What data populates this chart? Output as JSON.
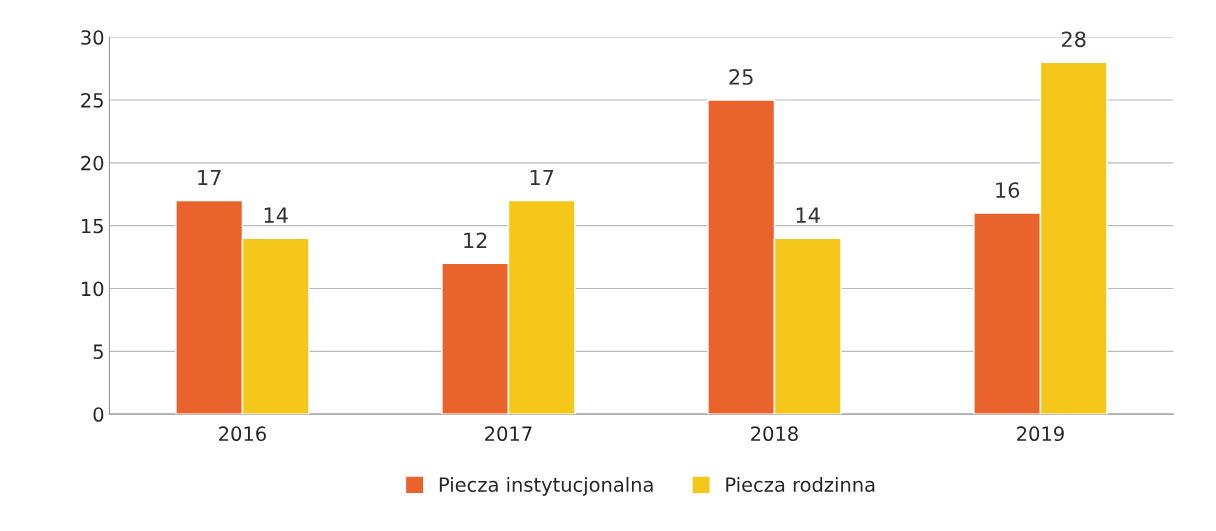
{
  "chart_data": {
    "type": "bar",
    "categories": [
      "2016",
      "2017",
      "2018",
      "2019"
    ],
    "series": [
      {
        "name": "Piecza instytucjonalna",
        "color": "#e8642c",
        "values": [
          17,
          12,
          25,
          16
        ]
      },
      {
        "name": "Piecza rodzinna",
        "color": "#f5c71a",
        "values": [
          14,
          17,
          14,
          28
        ]
      }
    ],
    "ylim": [
      0,
      30
    ],
    "yticks": [
      0,
      5,
      10,
      15,
      20,
      25,
      30
    ],
    "grid": "y",
    "legend": "bottom",
    "data_labels": true
  }
}
